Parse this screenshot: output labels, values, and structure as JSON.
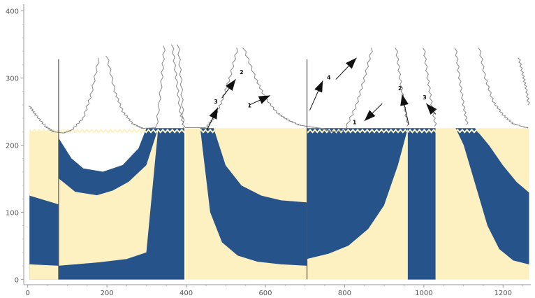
{
  "chart_data": {
    "type": "area",
    "title": "",
    "xlabel": "",
    "ylabel": "",
    "xlim": [
      -10,
      1270
    ],
    "ylim": [
      -8,
      410
    ],
    "x_ticks": [
      0,
      200,
      400,
      600,
      800,
      1000,
      1200
    ],
    "y_ticks": [
      0,
      100,
      200,
      300,
      400
    ],
    "grid": false,
    "colors": {
      "dark": "#26538a",
      "light": "#fdf0c1",
      "outline": "#888888",
      "arrow": "#111111"
    },
    "fill_top": 220,
    "vertical_lines": [
      {
        "x": 78,
        "y1": 0,
        "y2": 328
      },
      {
        "x": 705,
        "y1": 0,
        "y2": 328
      }
    ],
    "regions": [
      {
        "color": "dark",
        "points": [
          [
            5,
            0
          ],
          [
            5,
            125
          ],
          [
            78,
            112
          ],
          [
            78,
            0
          ]
        ]
      },
      {
        "color": "light",
        "points": [
          [
            5,
            0
          ],
          [
            5,
            22
          ],
          [
            78,
            20
          ],
          [
            78,
            0
          ]
        ]
      },
      {
        "color": "light",
        "points": [
          [
            5,
            220
          ],
          [
            5,
            125
          ],
          [
            78,
            112
          ],
          [
            78,
            220
          ]
        ]
      },
      {
        "color": "dark",
        "points": [
          [
            78,
            210
          ],
          [
            78,
            150
          ],
          [
            120,
            130
          ],
          [
            175,
            125
          ],
          [
            215,
            132
          ],
          [
            255,
            145
          ],
          [
            300,
            170
          ],
          [
            330,
            225
          ],
          [
            300,
            225
          ],
          [
            280,
            195
          ],
          [
            240,
            170
          ],
          [
            190,
            160
          ],
          [
            140,
            165
          ],
          [
            110,
            180
          ]
        ]
      },
      {
        "color": "light",
        "points": [
          [
            78,
            20
          ],
          [
            78,
            150
          ],
          [
            120,
            130
          ],
          [
            175,
            125
          ],
          [
            215,
            132
          ],
          [
            255,
            145
          ],
          [
            300,
            170
          ],
          [
            330,
            225
          ],
          [
            300,
            40
          ],
          [
            250,
            30
          ],
          [
            180,
            25
          ],
          [
            120,
            22
          ]
        ]
      },
      {
        "color": "dark",
        "points": [
          [
            78,
            0
          ],
          [
            78,
            20
          ],
          [
            120,
            22
          ],
          [
            180,
            25
          ],
          [
            250,
            30
          ],
          [
            300,
            40
          ],
          [
            330,
            225
          ],
          [
            395,
            225
          ],
          [
            395,
            0
          ],
          [
            310,
            0
          ]
        ]
      },
      {
        "color": "dark",
        "points": [
          [
            435,
            225
          ],
          [
            470,
            225
          ],
          [
            500,
            170
          ],
          [
            540,
            140
          ],
          [
            590,
            125
          ],
          [
            640,
            118
          ],
          [
            705,
            115
          ],
          [
            705,
            20
          ],
          [
            640,
            22
          ],
          [
            580,
            26
          ],
          [
            530,
            35
          ],
          [
            490,
            55
          ],
          [
            460,
            100
          ],
          [
            440,
            200
          ]
        ]
      },
      {
        "color": "light",
        "points": [
          [
            400,
            0
          ],
          [
            400,
            225
          ],
          [
            435,
            225
          ],
          [
            440,
            200
          ],
          [
            460,
            100
          ],
          [
            490,
            55
          ],
          [
            530,
            35
          ],
          [
            580,
            26
          ],
          [
            640,
            22
          ],
          [
            705,
            20
          ],
          [
            705,
            0
          ]
        ]
      },
      {
        "color": "light",
        "points": [
          [
            470,
            225
          ],
          [
            500,
            170
          ],
          [
            540,
            140
          ],
          [
            590,
            125
          ],
          [
            640,
            118
          ],
          [
            705,
            115
          ],
          [
            705,
            225
          ]
        ]
      },
      {
        "color": "dark",
        "points": [
          [
            705,
            30
          ],
          [
            705,
            110
          ],
          [
            740,
            120
          ],
          [
            790,
            130
          ],
          [
            830,
            150
          ],
          [
            870,
            180
          ],
          [
            890,
            225
          ],
          [
            960,
            225
          ],
          [
            960,
            225
          ],
          [
            935,
            170
          ],
          [
            900,
            110
          ],
          [
            860,
            75
          ],
          [
            810,
            50
          ],
          [
            760,
            38
          ]
        ]
      },
      {
        "color": "light",
        "points": [
          [
            705,
            0
          ],
          [
            705,
            30
          ],
          [
            760,
            38
          ],
          [
            810,
            50
          ],
          [
            860,
            75
          ],
          [
            900,
            110
          ],
          [
            935,
            170
          ],
          [
            960,
            225
          ],
          [
            1030,
            225
          ],
          [
            1030,
            0
          ]
        ]
      },
      {
        "color": "dark",
        "points": [
          [
            705,
            225
          ],
          [
            705,
            110
          ],
          [
            740,
            120
          ],
          [
            790,
            130
          ],
          [
            830,
            150
          ],
          [
            870,
            180
          ],
          [
            890,
            225
          ]
        ]
      },
      {
        "color": "dark",
        "points": [
          [
            960,
            0
          ],
          [
            960,
            225
          ],
          [
            1030,
            225
          ],
          [
            1030,
            0
          ]
        ]
      },
      {
        "color": "dark",
        "points": [
          [
            1080,
            225
          ],
          [
            1130,
            225
          ],
          [
            1165,
            200
          ],
          [
            1200,
            170
          ],
          [
            1235,
            145
          ],
          [
            1265,
            130
          ],
          [
            1265,
            22
          ],
          [
            1225,
            28
          ],
          [
            1190,
            45
          ],
          [
            1160,
            80
          ],
          [
            1130,
            140
          ],
          [
            1100,
            200
          ]
        ]
      },
      {
        "color": "light",
        "points": [
          [
            1030,
            0
          ],
          [
            1030,
            225
          ],
          [
            1080,
            225
          ],
          [
            1100,
            200
          ],
          [
            1130,
            140
          ],
          [
            1160,
            80
          ],
          [
            1190,
            45
          ],
          [
            1225,
            28
          ],
          [
            1265,
            22
          ],
          [
            1265,
            0
          ]
        ]
      },
      {
        "color": "light",
        "points": [
          [
            1130,
            225
          ],
          [
            1165,
            200
          ],
          [
            1200,
            170
          ],
          [
            1235,
            145
          ],
          [
            1265,
            130
          ],
          [
            1265,
            225
          ]
        ]
      }
    ],
    "outlines": [
      {
        "points": [
          [
            5,
            258
          ],
          [
            20,
            245
          ],
          [
            45,
            228
          ],
          [
            65,
            220
          ],
          [
            90,
            218
          ],
          [
            110,
            222
          ],
          [
            140,
            240
          ],
          [
            160,
            275
          ],
          [
            180,
            330
          ]
        ]
      },
      {
        "points": [
          [
            200,
            333
          ],
          [
            220,
            280
          ],
          [
            240,
            250
          ],
          [
            265,
            232
          ],
          [
            290,
            225
          ],
          [
            325,
            226
          ],
          [
            338,
            295
          ],
          [
            345,
            348
          ]
        ]
      },
      {
        "points": [
          [
            365,
            350
          ],
          [
            375,
            300
          ],
          [
            385,
            250
          ],
          [
            395,
            225
          ]
        ]
      },
      {
        "points": [
          [
            400,
            226
          ],
          [
            450,
            226
          ],
          [
            470,
            240
          ],
          [
            490,
            265
          ],
          [
            510,
            300
          ],
          [
            530,
            345
          ]
        ]
      },
      {
        "points": [
          [
            545,
            345
          ],
          [
            575,
            300
          ],
          [
            600,
            270
          ],
          [
            630,
            248
          ],
          [
            655,
            238
          ],
          [
            685,
            230
          ],
          [
            705,
            228
          ]
        ]
      },
      {
        "points": [
          [
            705,
            228
          ],
          [
            740,
            225
          ],
          [
            770,
            220
          ],
          [
            800,
            222
          ],
          [
            830,
            260
          ],
          [
            850,
            300
          ],
          [
            870,
            345
          ]
        ]
      },
      {
        "points": [
          [
            930,
            345
          ],
          [
            940,
            300
          ],
          [
            950,
            260
          ],
          [
            960,
            228
          ]
        ]
      },
      {
        "points": [
          [
            1000,
            345
          ],
          [
            1010,
            300
          ],
          [
            1020,
            260
          ],
          [
            1030,
            228
          ]
        ]
      },
      {
        "points": [
          [
            1080,
            345
          ],
          [
            1090,
            300
          ],
          [
            1100,
            260
          ],
          [
            1110,
            230
          ]
        ]
      },
      {
        "points": [
          [
            1140,
            345
          ],
          [
            1155,
            300
          ],
          [
            1175,
            265
          ],
          [
            1200,
            245
          ],
          [
            1225,
            232
          ],
          [
            1265,
            225
          ]
        ]
      },
      {
        "points": [
          [
            380,
            350
          ],
          [
            388,
            290
          ],
          [
            393,
            230
          ]
        ]
      },
      {
        "points": [
          [
            1240,
            330
          ],
          [
            1250,
            305
          ],
          [
            1258,
            285
          ],
          [
            1265,
            260
          ]
        ]
      }
    ],
    "annotations": [
      {
        "label": "1",
        "label_x": 560,
        "label_y": 256,
        "tail_x": 560,
        "tail_y": 260,
        "head_x": 612,
        "head_y": 274
      },
      {
        "label": "2",
        "label_x": 540,
        "label_y": 306,
        "tail_x": 490,
        "tail_y": 270,
        "head_x": 525,
        "head_y": 298
      },
      {
        "label": "3",
        "label_x": 475,
        "label_y": 262,
        "tail_x": 452,
        "tail_y": 222,
        "head_x": 480,
        "head_y": 256
      },
      {
        "label": "4",
        "label_x": 760,
        "label_y": 298,
        "tail_x": 712,
        "tail_y": 252,
        "head_x": 745,
        "head_y": 296
      },
      {
        "label": "1",
        "label_x": 825,
        "label_y": 231,
        "tail_x": 895,
        "tail_y": 262,
        "head_x": 850,
        "head_y": 236
      },
      {
        "label": "2",
        "label_x": 940,
        "label_y": 282,
        "tail_x": 962,
        "tail_y": 230,
        "head_x": 945,
        "head_y": 276
      },
      {
        "label": "3",
        "label_x": 1002,
        "label_y": 268,
        "tail_x": 1030,
        "tail_y": 246,
        "head_x": 1006,
        "head_y": 262
      },
      {
        "label": "",
        "label_x": 0,
        "label_y": 0,
        "tail_x": 778,
        "tail_y": 298,
        "head_x": 830,
        "head_y": 330
      }
    ]
  }
}
